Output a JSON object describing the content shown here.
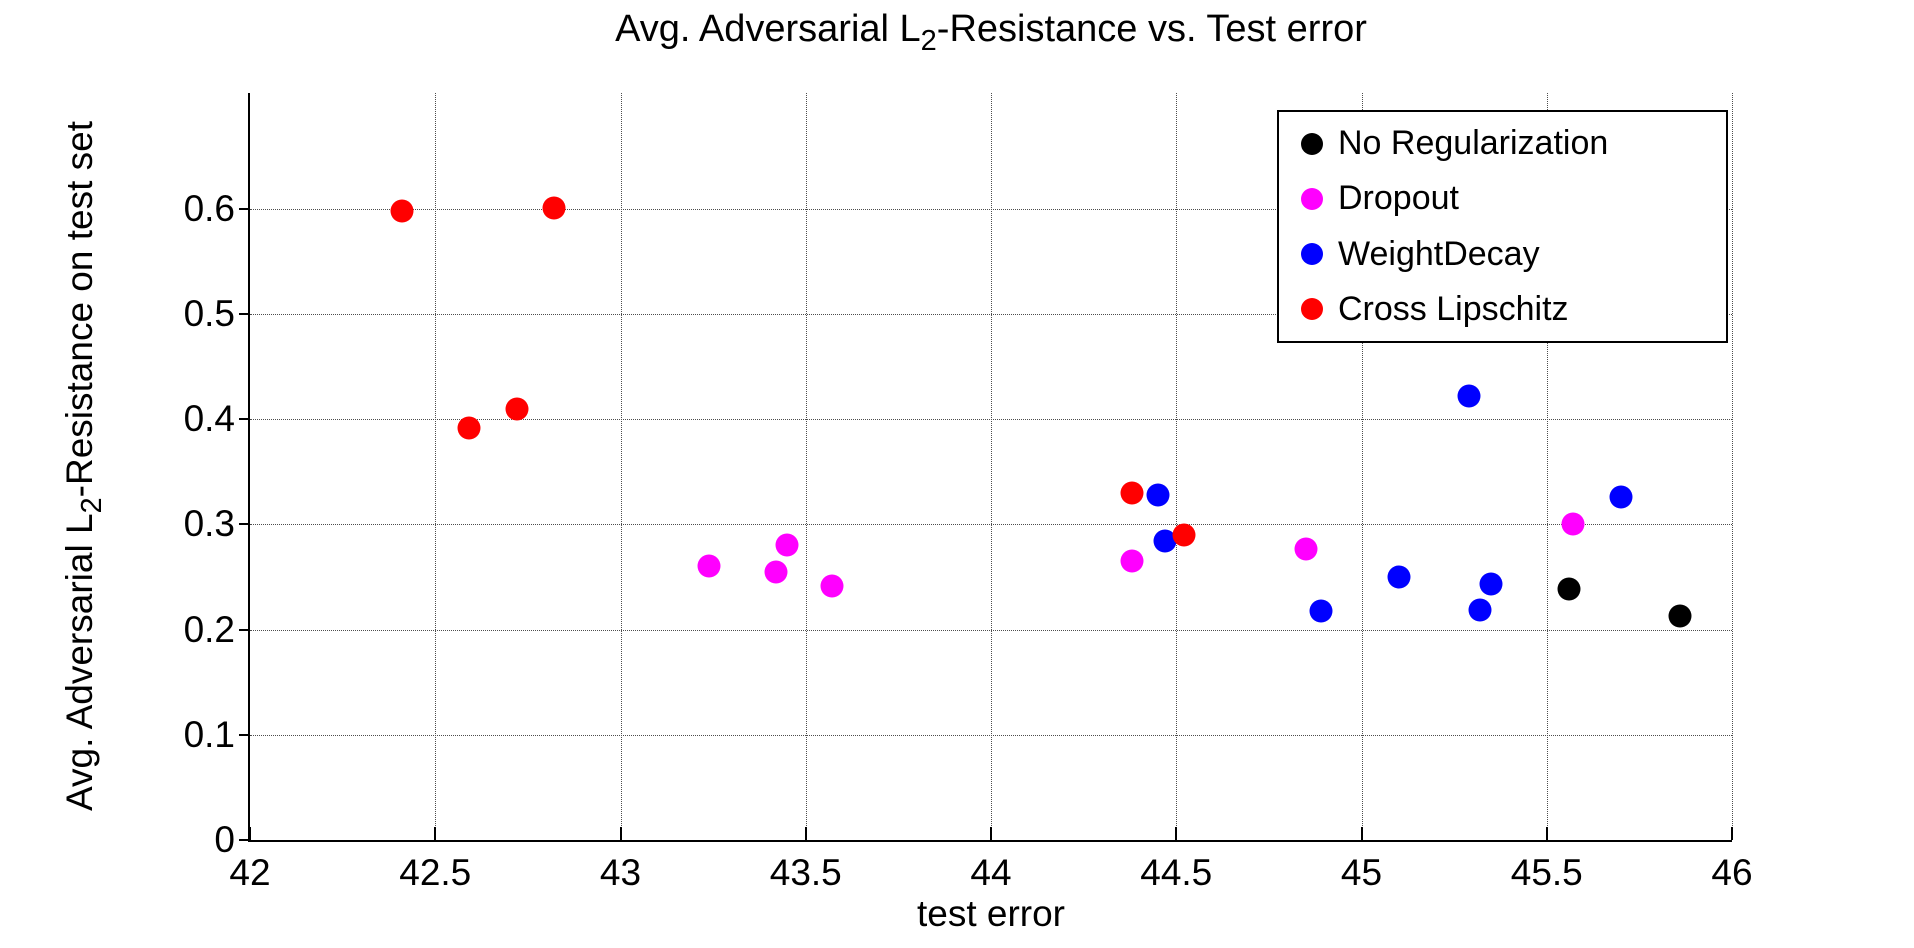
{
  "chart_data": {
    "type": "scatter",
    "title": {
      "prefix": "Avg. Adversarial L",
      "subscript": "2",
      "suffix": "-Resistance vs. Test error"
    },
    "xlabel": "test error",
    "ylabel": {
      "prefix": "Avg. Adversarial L",
      "subscript": "2",
      "suffix": "-Resistance on test set"
    },
    "xlim": [
      42,
      46
    ],
    "ylim": [
      0,
      0.71
    ],
    "xticks": {
      "values": [
        42,
        42.5,
        43,
        43.5,
        44,
        44.5,
        45,
        45.5,
        46
      ],
      "labels": [
        "42",
        "42.5",
        "43",
        "43.5",
        "44",
        "44.5",
        "45",
        "45.5",
        "46"
      ]
    },
    "yticks": {
      "values": [
        0,
        0.1,
        0.2,
        0.3,
        0.4,
        0.5,
        0.6
      ],
      "labels": [
        "0",
        "0.1",
        "0.2",
        "0.3",
        "0.4",
        "0.5",
        "0.6"
      ]
    },
    "grid": true,
    "legend_position": "top-right",
    "axis_color": "#000000",
    "series": [
      {
        "name": "No Regularization",
        "color": "#000000",
        "points": [
          [
            45.56,
            0.239
          ],
          [
            45.86,
            0.213
          ]
        ]
      },
      {
        "name": "Dropout",
        "color": "#ff00ff",
        "points": [
          [
            43.24,
            0.26
          ],
          [
            43.42,
            0.255
          ],
          [
            43.45,
            0.28
          ],
          [
            43.57,
            0.241
          ],
          [
            44.38,
            0.265
          ],
          [
            44.85,
            0.277
          ],
          [
            45.57,
            0.3
          ]
        ]
      },
      {
        "name": "WeightDecay",
        "color": "#0000ff",
        "points": [
          [
            44.45,
            0.328
          ],
          [
            44.47,
            0.284
          ],
          [
            44.89,
            0.218
          ],
          [
            45.1,
            0.25
          ],
          [
            45.29,
            0.422
          ],
          [
            45.32,
            0.219
          ],
          [
            45.35,
            0.243
          ],
          [
            45.7,
            0.326
          ]
        ]
      },
      {
        "name": "Cross Lipschitz",
        "color": "#ff0000",
        "points": [
          [
            42.41,
            0.598
          ],
          [
            42.59,
            0.392
          ],
          [
            42.72,
            0.41
          ],
          [
            42.82,
            0.601
          ],
          [
            44.38,
            0.33
          ],
          [
            44.52,
            0.29
          ]
        ]
      }
    ]
  }
}
